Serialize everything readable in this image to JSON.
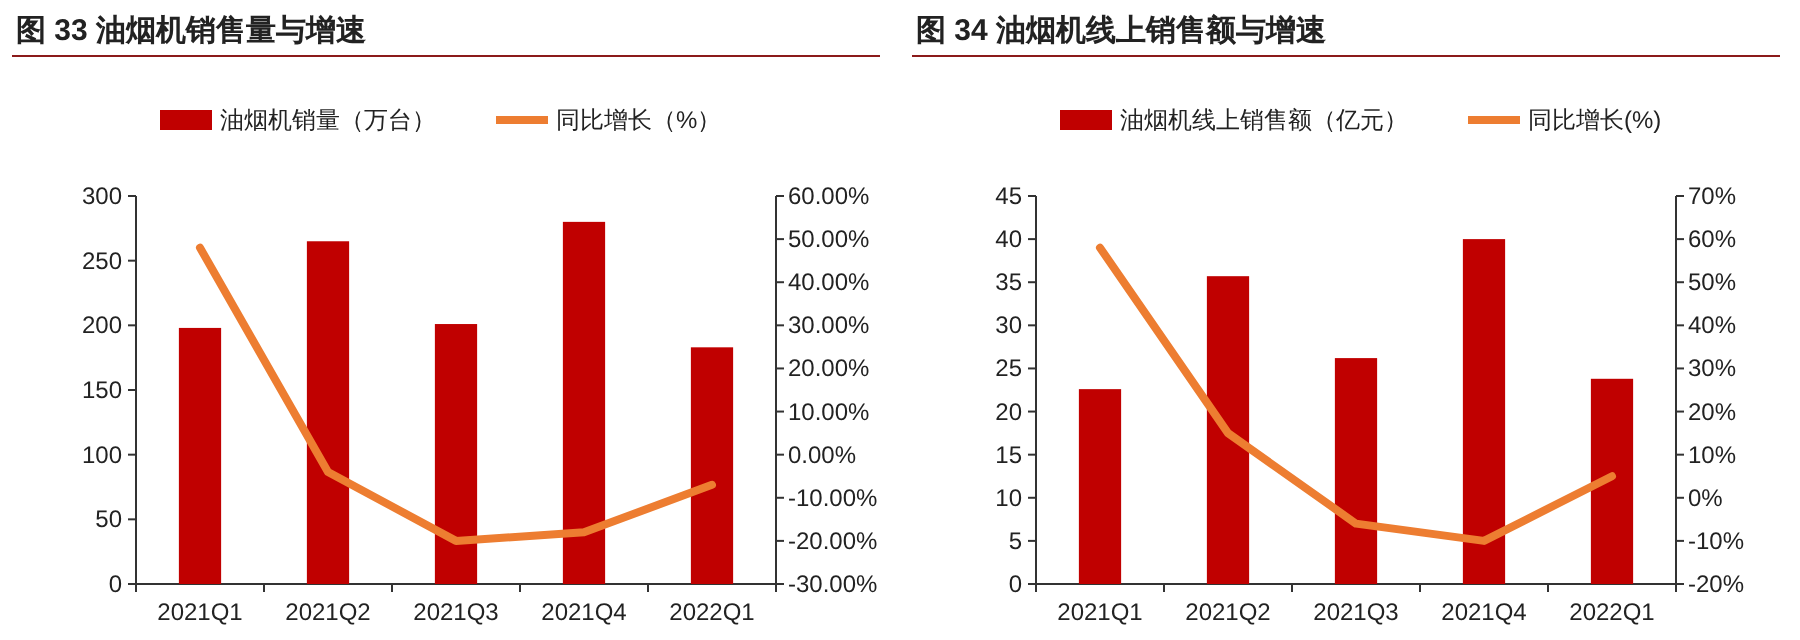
{
  "chart_data": [
    {
      "type": "bar",
      "title": "图 33 油烟机销售量与增速",
      "categories": [
        "2021Q1",
        "2021Q2",
        "2021Q3",
        "2021Q4",
        "2022Q1"
      ],
      "series": [
        {
          "name": "油烟机销量（万台）",
          "color": "#c00000",
          "values": [
            198,
            265,
            201,
            280,
            183
          ]
        },
        {
          "name": "同比增长（%）",
          "type": "line",
          "axis": "y2",
          "color": "#ed7d31",
          "values": [
            48,
            -4,
            -20,
            -18,
            -7
          ]
        }
      ],
      "ylim": [
        0,
        300
      ],
      "yticks": [
        0,
        50,
        100,
        150,
        200,
        250,
        300
      ],
      "y2lim": [
        -30,
        60
      ],
      "y2ticks": [
        {
          "value": -30,
          "label": "-30.00%"
        },
        {
          "value": -20,
          "label": "-20.00%"
        },
        {
          "value": -10,
          "label": "-10.00%"
        },
        {
          "value": 0,
          "label": "0.00%"
        },
        {
          "value": 10,
          "label": "10.00%"
        },
        {
          "value": 20,
          "label": "20.00%"
        },
        {
          "value": 30,
          "label": "30.00%"
        },
        {
          "value": 40,
          "label": "40.00%"
        },
        {
          "value": 50,
          "label": "50.00%"
        },
        {
          "value": 60,
          "label": "60.00%"
        }
      ],
      "legend": "top"
    },
    {
      "type": "bar",
      "title": "图 34 油烟机线上销售额与增速",
      "categories": [
        "2021Q1",
        "2021Q2",
        "2021Q3",
        "2021Q4",
        "2022Q1"
      ],
      "series": [
        {
          "name": "油烟机线上销售额（亿元）",
          "color": "#c00000",
          "values": [
            22.6,
            35.7,
            26.2,
            40,
            23.8
          ]
        },
        {
          "name": "同比增长(%)",
          "type": "line",
          "axis": "y2",
          "color": "#ed7d31",
          "values": [
            58,
            15,
            -6,
            -10,
            5
          ]
        }
      ],
      "ylim": [
        0,
        45
      ],
      "yticks": [
        0,
        5,
        10,
        15,
        20,
        25,
        30,
        35,
        40,
        45
      ],
      "y2lim": [
        -20,
        70
      ],
      "y2ticks": [
        {
          "value": -20,
          "label": "-20%"
        },
        {
          "value": -10,
          "label": "-10%"
        },
        {
          "value": 0,
          "label": "0%"
        },
        {
          "value": 10,
          "label": "10%"
        },
        {
          "value": 20,
          "label": "20%"
        },
        {
          "value": 30,
          "label": "30%"
        },
        {
          "value": 40,
          "label": "40%"
        },
        {
          "value": 50,
          "label": "50%"
        },
        {
          "value": 60,
          "label": "60%"
        },
        {
          "value": 70,
          "label": "70%"
        }
      ],
      "legend": "top"
    }
  ]
}
